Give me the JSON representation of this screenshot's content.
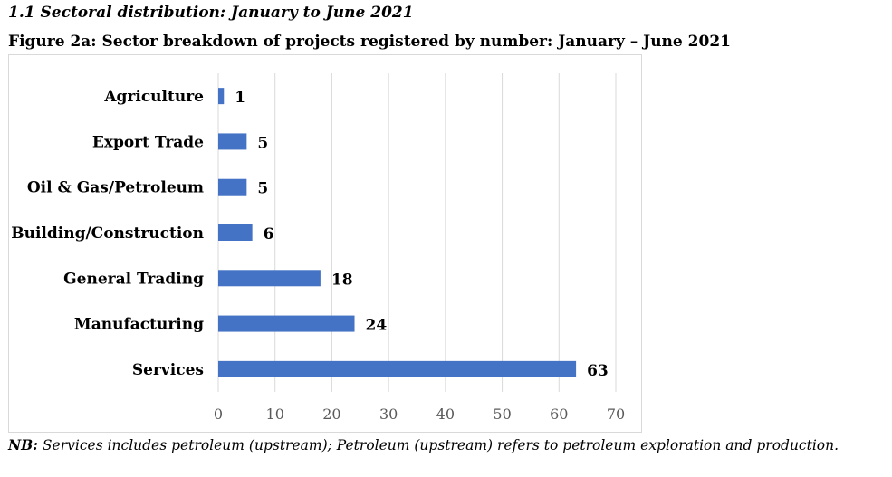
{
  "section_title": "1.1 Sectoral distribution: January to June 2021",
  "figure_title": "Figure 2a: Sector breakdown of projects registered by number: January – June 2021",
  "note": {
    "label": "NB:",
    "text": " Services includes petroleum (upstream); Petroleum (upstream) refers to petroleum exploration and production."
  },
  "chart_data": {
    "type": "bar",
    "orientation": "horizontal",
    "categories": [
      "Agriculture",
      "Export Trade",
      "Oil & Gas/Petroleum",
      "Building/Construction",
      "General Trading",
      "Manufacturing",
      "Services"
    ],
    "values": [
      1,
      5,
      5,
      6,
      18,
      24,
      63
    ],
    "data_labels": [
      "1",
      "5",
      "5",
      "6",
      "18",
      "24",
      "63"
    ],
    "xlim": [
      0,
      70
    ],
    "x_ticks": [
      0,
      10,
      20,
      30,
      40,
      50,
      60,
      70
    ],
    "x_tick_labels": [
      "0",
      "10",
      "20",
      "30",
      "40",
      "50",
      "60",
      "70"
    ],
    "grid": true,
    "legend": "none",
    "bar_color": "#4472c4",
    "grid_color": "#d9d9d9",
    "tick_label_color": "#595959"
  }
}
